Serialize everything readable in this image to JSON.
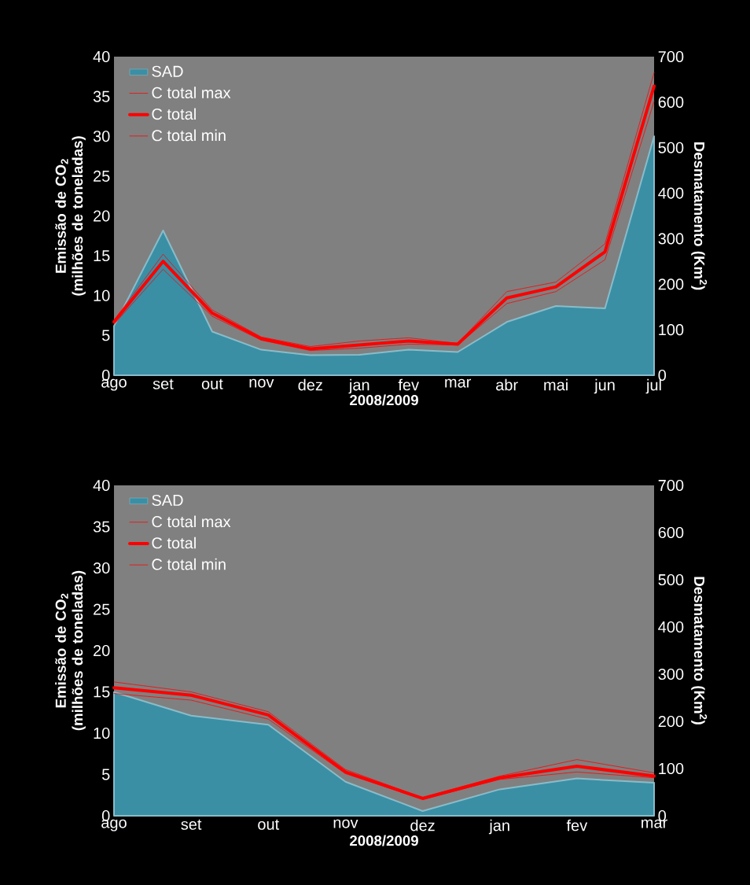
{
  "chart_data": [
    {
      "type": "line",
      "xlabel": "2008/2009",
      "ylabel": "Emissão de CO$_{2}$ (milhões de toneladas)",
      "y2label": "Desmatamento (Km$^{2}$)",
      "categories": [
        "ago",
        "set",
        "out",
        "nov",
        "dez",
        "jan",
        "fev",
        "mar",
        "abr",
        "mai",
        "jun",
        "jul"
      ],
      "ylim": [
        0,
        40
      ],
      "yticks": [
        0,
        5,
        10,
        15,
        20,
        25,
        30,
        35,
        40
      ],
      "y2lim": [
        0,
        700
      ],
      "y2ticks": [
        0,
        100,
        200,
        300,
        400,
        500,
        600,
        700
      ],
      "legend": "top left",
      "series": [
        {
          "name": "SAD",
          "type": "area",
          "axis": "y2",
          "color": "#3a8fa5",
          "values": [
            108,
            318,
            96,
            56,
            44,
            45,
            56,
            51,
            117,
            152,
            147,
            525
          ]
        },
        {
          "name": "C total max",
          "line_style": "dashed",
          "color": "#ff0000",
          "values": [
            6.9,
            15.2,
            8.2,
            4.8,
            3.6,
            4.3,
            4.7,
            4.0,
            10.5,
            11.7,
            16.5,
            38
          ]
        },
        {
          "name": "C total",
          "line_style": "solid",
          "color": "#ff0000",
          "values": [
            6.7,
            14.3,
            7.8,
            4.6,
            3.3,
            3.8,
            4.3,
            3.9,
            9.7,
            11.1,
            15.5,
            36.3
          ]
        },
        {
          "name": "C total min",
          "line_style": "dashed",
          "color": "#ff0000",
          "values": [
            6.4,
            13.3,
            7.4,
            4.4,
            3.1,
            3.4,
            3.9,
            3.8,
            9.0,
            10.5,
            14.5,
            34.4
          ]
        }
      ]
    },
    {
      "type": "line",
      "xlabel": "2008/2009",
      "ylabel": "Emissão de CO$_{2}$ (milhões de toneladas)",
      "y2label": "Desmatamento (Km$^{2}$)",
      "categories": [
        "ago",
        "set",
        "out",
        "nov",
        "dez",
        "jan",
        "fev",
        "mar"
      ],
      "ylim": [
        0,
        40
      ],
      "yticks": [
        0,
        5,
        10,
        15,
        20,
        25,
        30,
        35,
        40
      ],
      "y2lim": [
        0,
        700
      ],
      "y2ticks": [
        0,
        100,
        200,
        300,
        400,
        500,
        600,
        700
      ],
      "legend": "top left",
      "series": [
        {
          "name": "SAD",
          "type": "area",
          "axis": "y2",
          "color": "#3a8fa5",
          "values": [
            262,
            212,
            193,
            72,
            10,
            56,
            79,
            70
          ]
        },
        {
          "name": "C total max",
          "line_style": "dashed",
          "color": "#ff0000",
          "values": [
            16.2,
            15.0,
            12.6,
            5.6,
            2.2,
            4.8,
            6.8,
            5.2
          ]
        },
        {
          "name": "C total",
          "line_style": "solid",
          "color": "#ff0000",
          "values": [
            15.5,
            14.6,
            12.2,
            5.3,
            2.1,
            4.6,
            6.0,
            4.8
          ]
        },
        {
          "name": "C total min",
          "line_style": "dashed",
          "color": "#ff0000",
          "values": [
            14.8,
            14.0,
            11.7,
            5.1,
            2.0,
            4.4,
            5.3,
            4.6
          ]
        }
      ]
    }
  ]
}
